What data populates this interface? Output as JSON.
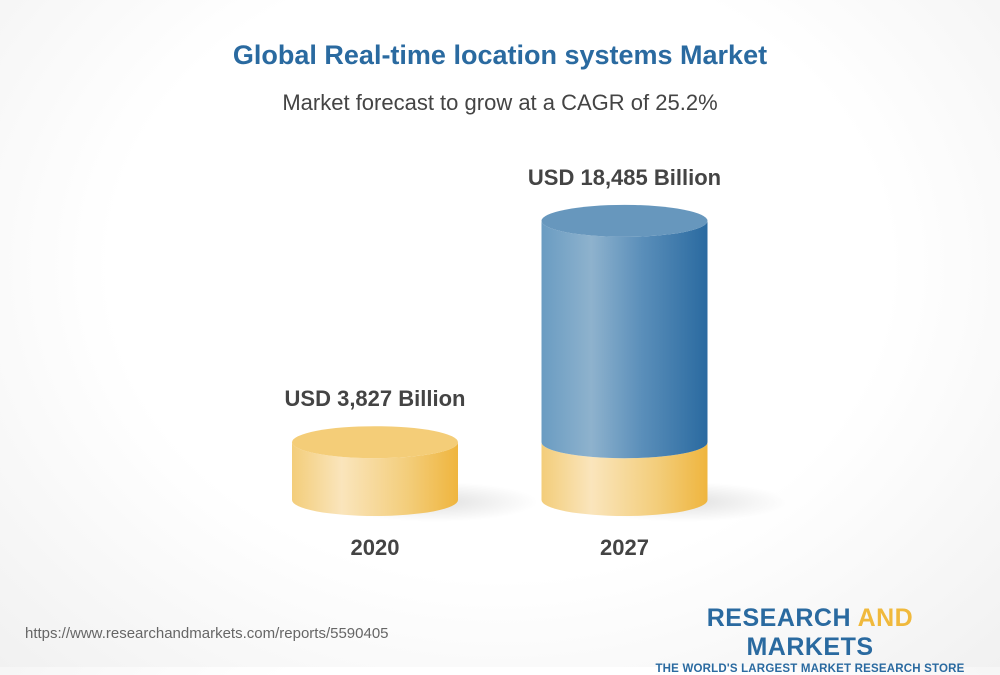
{
  "title": "Global Real-time location systems Market",
  "subtitle": "Market forecast to grow at a CAGR of 25.2%",
  "chart_data": {
    "type": "bar",
    "style": "3d-cylinder",
    "categories": [
      "2020",
      "2027"
    ],
    "values": [
      3827,
      18485
    ],
    "data_labels": [
      "USD 3,827 Billion",
      "USD 18,485 Billion"
    ],
    "unit": "USD Billion",
    "colors": {
      "base": "#f0b93c",
      "growth": "#2a6aa0"
    }
  },
  "footer": {
    "url": "https://www.researchandmarkets.com/reports/5590405",
    "logo_part1": "RESEARCH ",
    "logo_part2": "AND",
    "logo_part3": " MARKETS",
    "tagline": "THE WORLD'S LARGEST MARKET RESEARCH STORE"
  }
}
